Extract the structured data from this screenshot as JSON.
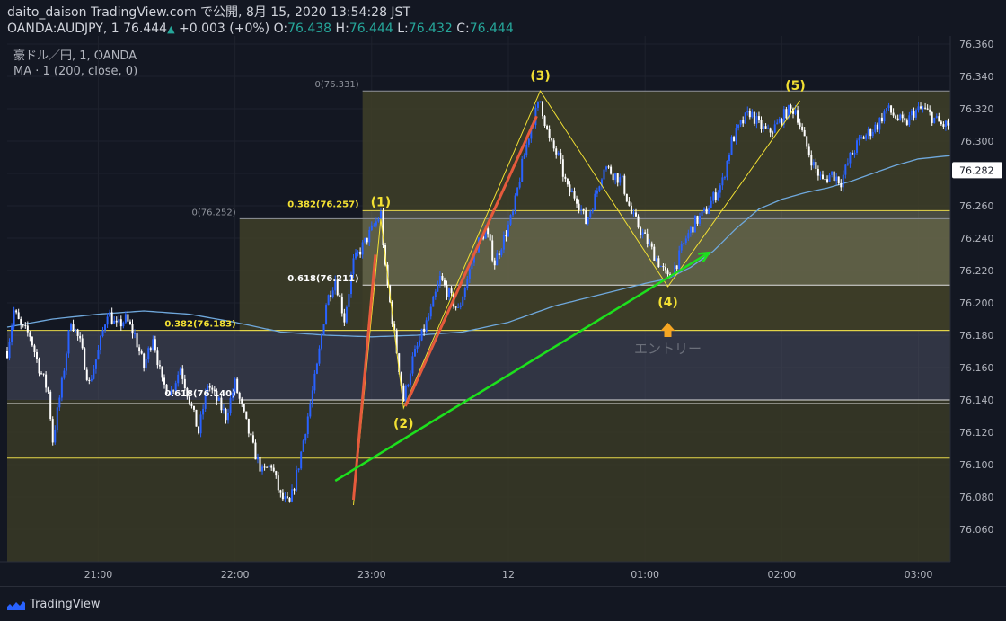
{
  "header": {
    "line1": "daito_daison TradingView.com で公開, 8月 15, 2020 13:54:28 JST",
    "symbol": "OANDA:AUDJPY, 1",
    "last": "76.444",
    "change": "+0.003 (+0%)",
    "o_label": "O:",
    "o": "76.438",
    "h_label": "H:",
    "h": "76.444",
    "l_label": "L:",
    "l": "76.432",
    "c_label": "C:",
    "c": "76.444",
    "instrument": "豪ドル／円, 1, OANDA",
    "indicator": "MA · 1 (200, close, 0)"
  },
  "footer": {
    "brand": "TradingView"
  },
  "colors": {
    "background": "#131722",
    "bull": "#2962ff",
    "bear": "#ffffff",
    "ma": "#6fa8dc",
    "fib_line": "#e8d84a",
    "trend": "#1de01d",
    "wave_up": "#e65a3c",
    "wave_line": "#f2e033",
    "entry_arrow": "#f5a623",
    "current_price_bg": "#ffffff"
  },
  "chart_data": {
    "type": "candlestick",
    "ylim": [
      76.04,
      76.365
    ],
    "y_ticks": [
      "76.360",
      "76.340",
      "76.320",
      "76.300",
      "76.280",
      "76.260",
      "76.240",
      "76.220",
      "76.200",
      "76.180",
      "76.160",
      "76.140",
      "76.120",
      "76.100",
      "76.080",
      "76.060"
    ],
    "current_price": "76.282",
    "x_ticks": [
      "21:00",
      "22:00",
      "23:00",
      "12",
      "01:00",
      "02:00",
      "03:00"
    ],
    "x_tick_minutes": [
      60,
      120,
      180,
      240,
      300,
      360,
      420
    ],
    "x_range_minutes": [
      20,
      434
    ],
    "waves": [
      {
        "label": "(2)",
        "t": 194,
        "price": 76.135
      },
      {
        "label": "(3)",
        "t": 254,
        "price": 76.331
      },
      {
        "label": "(4)",
        "t": 310,
        "price": 76.21
      },
      {
        "label": "(5)",
        "t": 366,
        "price": 76.325
      }
    ],
    "wave_path": [
      [
        172,
        76.075
      ],
      [
        184,
        76.252
      ],
      [
        194,
        76.135
      ],
      [
        254,
        76.331
      ],
      [
        310,
        76.21
      ],
      [
        368,
        76.325
      ]
    ],
    "wave1_label": {
      "label": "(1)",
      "t": 184,
      "price": 76.258
    },
    "fib_sets": [
      {
        "t_start": 122,
        "t_end": 434,
        "levels": [
          {
            "text": "0(76.252)",
            "price": 76.252,
            "label_color": "#8f939c"
          },
          {
            "text": "0.382(76.183)",
            "price": 76.183,
            "label_color": "#f2e033"
          },
          {
            "text": "0.618(76.140)",
            "price": 76.14,
            "label_color": "#ffffff"
          }
        ]
      },
      {
        "t_start": 176,
        "t_end": 434,
        "levels": [
          {
            "text": "0(76.331)",
            "price": 76.331,
            "label_color": "#8f939c"
          },
          {
            "text": "0.382(76.257)",
            "price": 76.257,
            "label_color": "#f2e033"
          },
          {
            "text": "0.618(76.211)",
            "price": 76.211,
            "label_color": "#ffffff"
          }
        ]
      }
    ],
    "base_line_price": 76.104,
    "trend_line": [
      [
        164,
        76.09
      ],
      [
        328,
        76.231
      ]
    ],
    "entry_label": "エントリー",
    "series_anchors": [
      [
        20,
        76.17
      ],
      [
        23,
        76.195
      ],
      [
        26,
        76.185
      ],
      [
        30,
        76.18
      ],
      [
        34,
        76.16
      ],
      [
        38,
        76.145
      ],
      [
        40,
        76.115
      ],
      [
        44,
        76.15
      ],
      [
        48,
        76.19
      ],
      [
        52,
        76.175
      ],
      [
        56,
        76.15
      ],
      [
        60,
        76.17
      ],
      [
        64,
        76.195
      ],
      [
        68,
        76.185
      ],
      [
        72,
        76.19
      ],
      [
        76,
        76.18
      ],
      [
        80,
        76.16
      ],
      [
        84,
        76.18
      ],
      [
        88,
        76.15
      ],
      [
        92,
        76.145
      ],
      [
        96,
        76.16
      ],
      [
        100,
        76.14
      ],
      [
        104,
        76.12
      ],
      [
        108,
        76.15
      ],
      [
        112,
        76.14
      ],
      [
        116,
        76.13
      ],
      [
        120,
        76.15
      ],
      [
        124,
        76.13
      ],
      [
        128,
        76.11
      ],
      [
        132,
        76.095
      ],
      [
        136,
        76.1
      ],
      [
        140,
        76.08
      ],
      [
        144,
        76.075
      ],
      [
        148,
        76.1
      ],
      [
        152,
        76.13
      ],
      [
        156,
        76.16
      ],
      [
        160,
        76.2
      ],
      [
        164,
        76.215
      ],
      [
        168,
        76.19
      ],
      [
        172,
        76.225
      ],
      [
        176,
        76.235
      ],
      [
        180,
        76.245
      ],
      [
        184,
        76.255
      ],
      [
        186,
        76.22
      ],
      [
        190,
        76.18
      ],
      [
        194,
        76.14
      ],
      [
        198,
        76.165
      ],
      [
        202,
        76.18
      ],
      [
        206,
        76.195
      ],
      [
        210,
        76.215
      ],
      [
        214,
        76.205
      ],
      [
        218,
        76.195
      ],
      [
        222,
        76.215
      ],
      [
        226,
        76.235
      ],
      [
        230,
        76.245
      ],
      [
        234,
        76.225
      ],
      [
        238,
        76.24
      ],
      [
        242,
        76.255
      ],
      [
        246,
        76.285
      ],
      [
        250,
        76.31
      ],
      [
        254,
        76.325
      ],
      [
        258,
        76.3
      ],
      [
        262,
        76.29
      ],
      [
        266,
        76.27
      ],
      [
        270,
        76.265
      ],
      [
        274,
        76.25
      ],
      [
        278,
        76.265
      ],
      [
        282,
        76.285
      ],
      [
        286,
        76.28
      ],
      [
        290,
        76.275
      ],
      [
        294,
        76.255
      ],
      [
        298,
        76.245
      ],
      [
        302,
        76.235
      ],
      [
        306,
        76.225
      ],
      [
        310,
        76.215
      ],
      [
        314,
        76.225
      ],
      [
        318,
        76.24
      ],
      [
        322,
        76.25
      ],
      [
        326,
        76.255
      ],
      [
        330,
        76.265
      ],
      [
        334,
        76.275
      ],
      [
        338,
        76.3
      ],
      [
        342,
        76.31
      ],
      [
        346,
        76.318
      ],
      [
        350,
        76.31
      ],
      [
        354,
        76.305
      ],
      [
        358,
        76.31
      ],
      [
        362,
        76.318
      ],
      [
        366,
        76.32
      ],
      [
        370,
        76.3
      ],
      [
        374,
        76.285
      ],
      [
        378,
        76.275
      ],
      [
        382,
        76.28
      ],
      [
        386,
        76.275
      ],
      [
        390,
        76.29
      ],
      [
        394,
        76.3
      ],
      [
        398,
        76.305
      ],
      [
        402,
        76.31
      ],
      [
        406,
        76.32
      ],
      [
        410,
        76.315
      ],
      [
        414,
        76.31
      ],
      [
        418,
        76.318
      ],
      [
        422,
        76.32
      ],
      [
        426,
        76.315
      ],
      [
        430,
        76.31
      ],
      [
        434,
        76.31
      ]
    ],
    "ma_anchors": [
      [
        20,
        76.185
      ],
      [
        40,
        76.19
      ],
      [
        60,
        76.193
      ],
      [
        80,
        76.195
      ],
      [
        100,
        76.193
      ],
      [
        120,
        76.188
      ],
      [
        130,
        76.185
      ],
      [
        140,
        76.182
      ],
      [
        160,
        76.18
      ],
      [
        180,
        76.179
      ],
      [
        200,
        76.18
      ],
      [
        220,
        76.182
      ],
      [
        240,
        76.188
      ],
      [
        260,
        76.198
      ],
      [
        280,
        76.205
      ],
      [
        300,
        76.212
      ],
      [
        310,
        76.215
      ],
      [
        320,
        76.222
      ],
      [
        330,
        76.232
      ],
      [
        340,
        76.246
      ],
      [
        350,
        76.258
      ],
      [
        360,
        76.264
      ],
      [
        370,
        76.268
      ],
      [
        380,
        76.271
      ],
      [
        390,
        76.275
      ],
      [
        400,
        76.28
      ],
      [
        410,
        76.285
      ],
      [
        420,
        76.289
      ],
      [
        434,
        76.291
      ]
    ]
  }
}
